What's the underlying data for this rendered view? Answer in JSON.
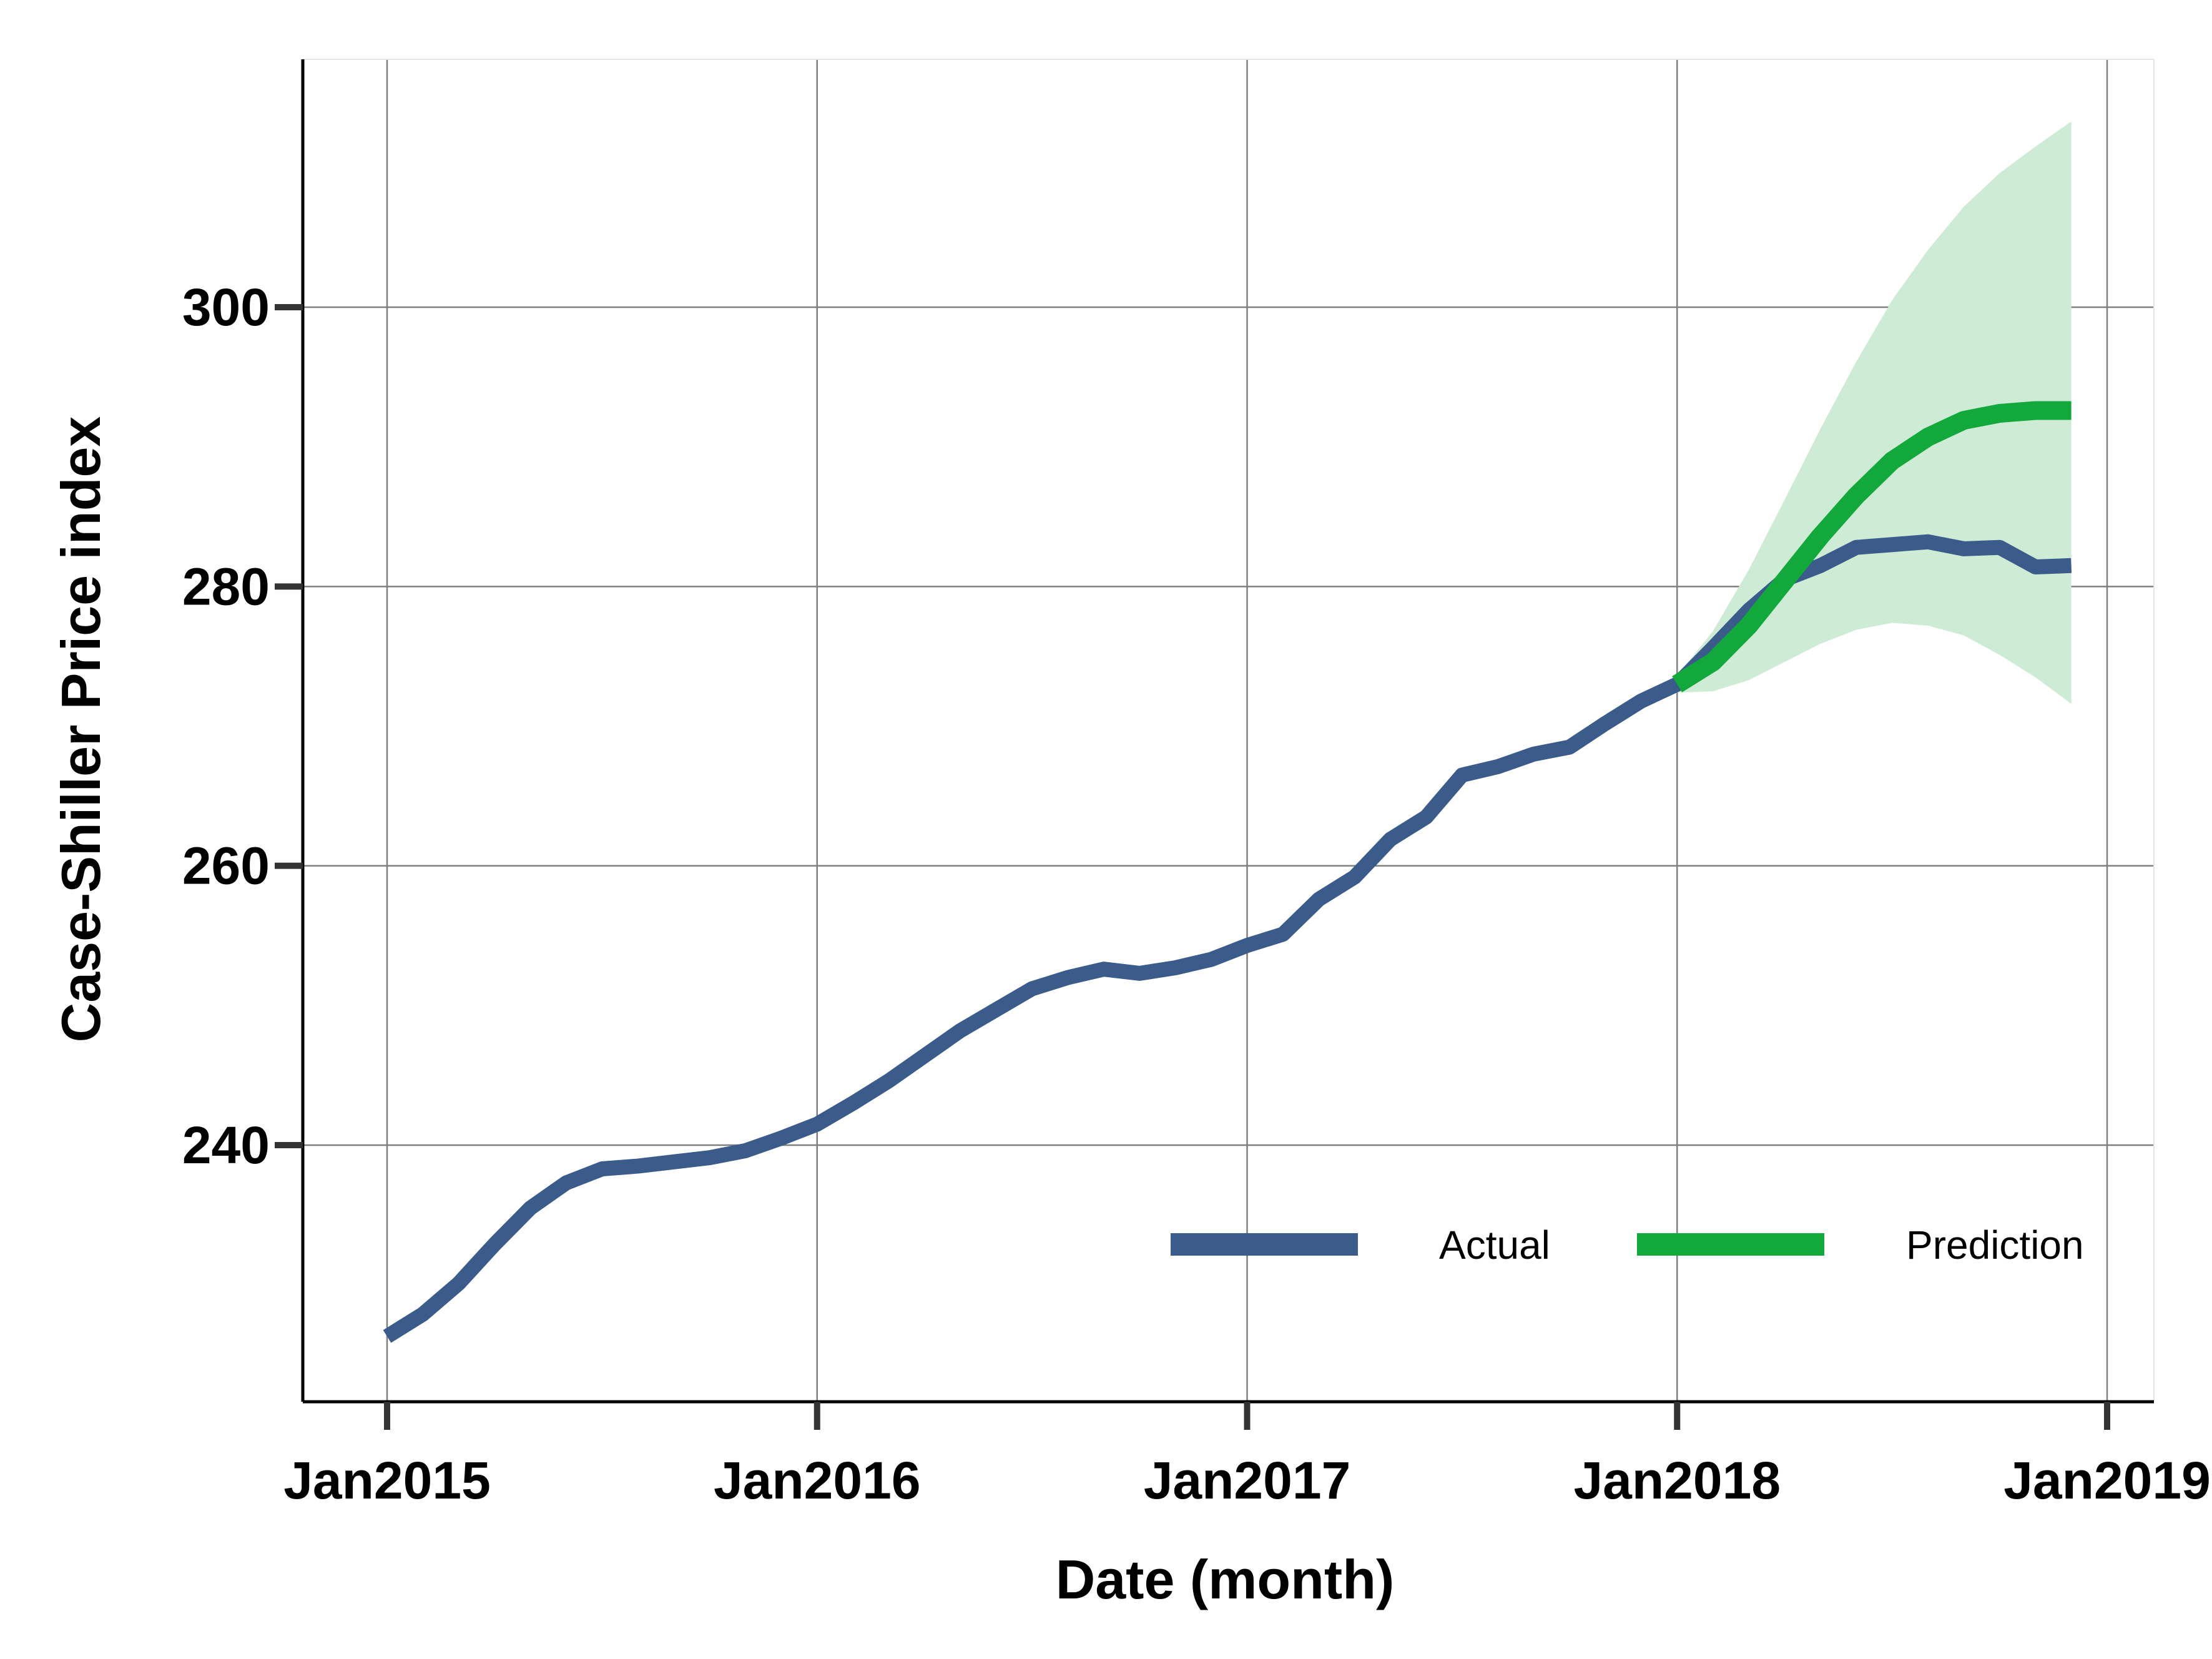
{
  "chart_data": {
    "type": "line",
    "title": "",
    "xlabel": "Date (month)",
    "ylabel": "Case-Shiller Price index",
    "x_ticks": [
      "Jan2015",
      "Jan2016",
      "Jan2017",
      "Jan2018",
      "Jan2019"
    ],
    "y_ticks": [
      240,
      260,
      280,
      300
    ],
    "xlim": [
      "2014-11",
      "2019-02"
    ],
    "ylim": [
      222,
      318
    ],
    "grid": true,
    "legend_position": "bottom-right",
    "series": [
      {
        "name": "Actual",
        "color": "#3b5c8a",
        "x": [
          "2015-01",
          "2015-02",
          "2015-03",
          "2015-04",
          "2015-05",
          "2015-06",
          "2015-07",
          "2015-08",
          "2015-09",
          "2015-10",
          "2015-11",
          "2015-12",
          "2016-01",
          "2016-02",
          "2016-03",
          "2016-04",
          "2016-05",
          "2016-06",
          "2016-07",
          "2016-08",
          "2016-09",
          "2016-10",
          "2016-11",
          "2016-12",
          "2017-01",
          "2017-02",
          "2017-03",
          "2017-04",
          "2017-05",
          "2017-06",
          "2017-07",
          "2017-08",
          "2017-09",
          "2017-10",
          "2017-11",
          "2017-12",
          "2018-01",
          "2018-02",
          "2018-03",
          "2018-04",
          "2018-05",
          "2018-06",
          "2018-07",
          "2018-08",
          "2018-09",
          "2018-10",
          "2018-11",
          "2018-12"
        ],
        "values": [
          226.3,
          227.9,
          230.1,
          232.9,
          235.5,
          237.3,
          238.3,
          238.5,
          238.8,
          239.1,
          239.6,
          240.5,
          241.5,
          243.0,
          244.6,
          246.4,
          248.2,
          249.7,
          251.2,
          252.0,
          252.6,
          252.3,
          252.7,
          253.3,
          254.3,
          255.1,
          257.6,
          259.2,
          261.9,
          263.5,
          266.5,
          267.1,
          268.0,
          268.5,
          270.2,
          271.8,
          273.0,
          275.6,
          278.3,
          280.5,
          281.5,
          282.8,
          283.0,
          283.2,
          282.7,
          282.8,
          281.4,
          281.5
        ]
      },
      {
        "name": "Prediction",
        "color": "#12a83c",
        "x": [
          "2018-01",
          "2018-02",
          "2018-03",
          "2018-04",
          "2018-05",
          "2018-06",
          "2018-07",
          "2018-08",
          "2018-09",
          "2018-10",
          "2018-11",
          "2018-12"
        ],
        "values": [
          273.0,
          274.6,
          277.2,
          280.4,
          283.6,
          286.5,
          289.0,
          290.7,
          291.9,
          292.4,
          292.6,
          292.6
        ],
        "lower": [
          272.4,
          272.5,
          273.3,
          274.6,
          275.9,
          276.9,
          277.4,
          277.2,
          276.5,
          275.1,
          273.5,
          271.6
        ],
        "upper": [
          273.6,
          276.8,
          281.2,
          286.2,
          291.3,
          296.1,
          300.5,
          304.1,
          307.2,
          309.6,
          311.5,
          313.3
        ],
        "band_color": "#cdebd5"
      }
    ]
  }
}
